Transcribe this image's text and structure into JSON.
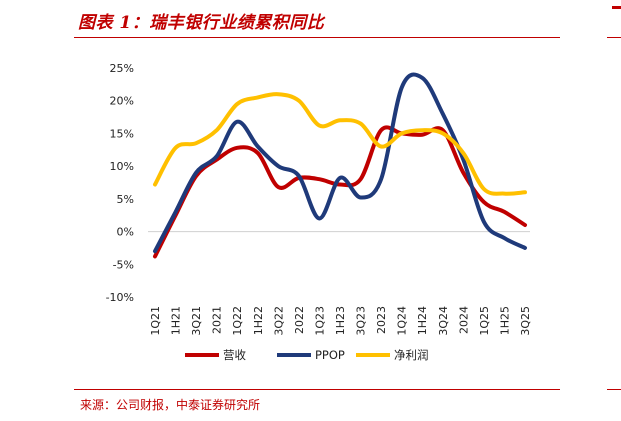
{
  "header": {
    "title": "图表 1：瑞丰银行业绩累积同比"
  },
  "footer": {
    "source": "来源：公司财报，中泰证券研究所"
  },
  "chart_data": {
    "type": "line",
    "title": "图表 1：瑞丰银行业绩累积同比",
    "xlabel": "",
    "ylabel": "",
    "ylim": [
      -10,
      25
    ],
    "yticks": [
      -10,
      -5,
      0,
      5,
      10,
      15,
      20,
      25
    ],
    "ytick_labels": [
      "-10%",
      "-5%",
      "0%",
      "5%",
      "10%",
      "15%",
      "20%",
      "25%"
    ],
    "categories": [
      "1Q21",
      "1H21",
      "3Q21",
      "2021",
      "1Q22",
      "1H22",
      "3Q22",
      "2022",
      "1Q23",
      "1H23",
      "3Q23",
      "2023",
      "1Q24",
      "1H24",
      "3Q24",
      "2024",
      "1Q25",
      "1H25",
      "3Q25"
    ],
    "legend_position": "bottom",
    "series": [
      {
        "name": "营收",
        "color": "#c00000",
        "values": [
          -3.8,
          2.5,
          8.5,
          11.0,
          12.8,
          12.0,
          6.8,
          8.2,
          8.0,
          7.2,
          8.0,
          15.5,
          15.0,
          14.8,
          15.5,
          9.0,
          4.5,
          3.0,
          1.0
        ]
      },
      {
        "name": "PPOP",
        "color": "#1f3a7a",
        "values": [
          -3.0,
          3.0,
          9.0,
          11.5,
          16.8,
          13.0,
          10.0,
          8.5,
          2.0,
          8.2,
          5.2,
          8.0,
          22.0,
          23.5,
          18.0,
          11.0,
          1.5,
          -1.0,
          -2.5
        ]
      },
      {
        "name": "净利润",
        "color": "#ffc000",
        "values": [
          7.2,
          12.8,
          13.5,
          15.5,
          19.5,
          20.5,
          21.0,
          20.0,
          16.2,
          17.0,
          16.5,
          13.0,
          15.0,
          15.5,
          15.0,
          12.0,
          6.5,
          5.8,
          6.0
        ]
      }
    ]
  }
}
